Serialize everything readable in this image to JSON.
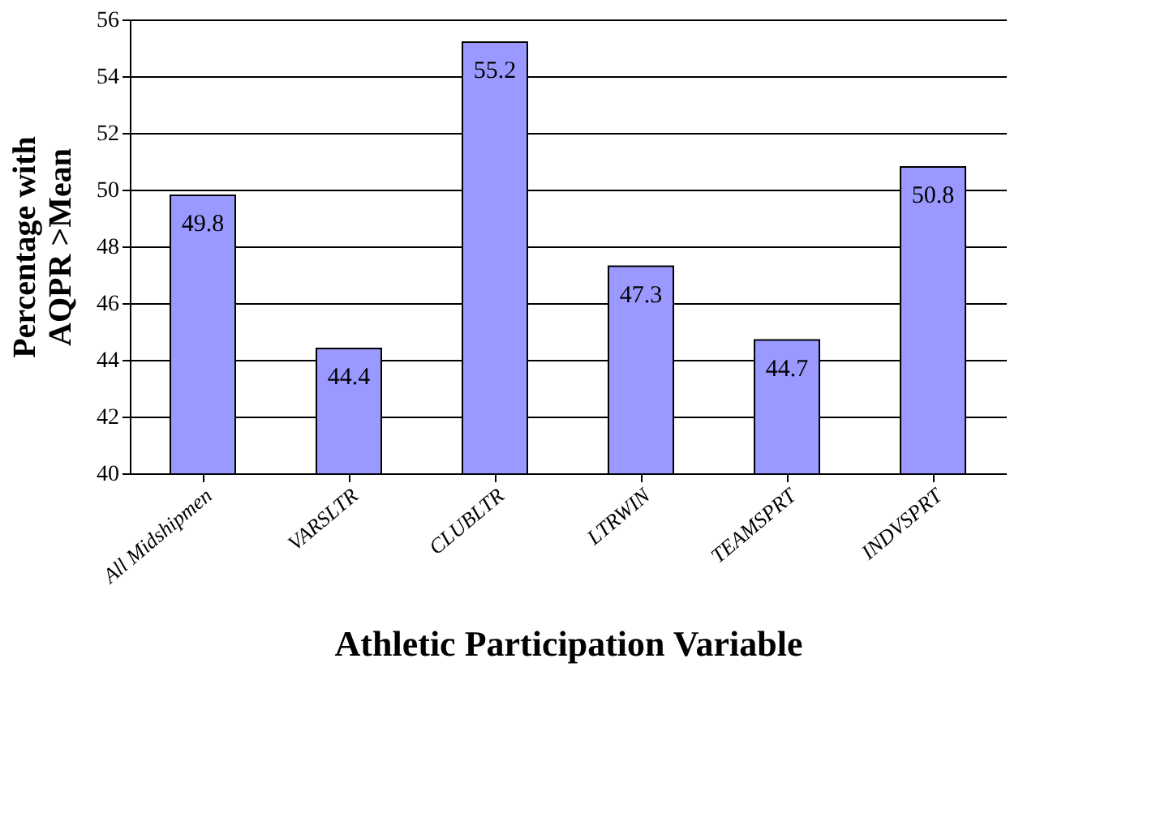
{
  "chart_data": {
    "type": "bar",
    "xlabel": "Athletic Participation Variable",
    "ylabel": "Percentage with\nAQPR >Mean",
    "categories": [
      "All Midshipmen",
      "VARSLTR",
      "CLUBLTR",
      "LTRWIN",
      "TEAMSPRT",
      "INDVSPRT"
    ],
    "values": [
      49.8,
      44.4,
      55.2,
      47.3,
      44.7,
      50.8
    ],
    "color": "#9999ff",
    "ylim": [
      40,
      56
    ],
    "yticks": [
      40,
      42,
      44,
      46,
      48,
      50,
      52,
      54,
      56
    ],
    "grid": "y",
    "data_labels": true
  }
}
